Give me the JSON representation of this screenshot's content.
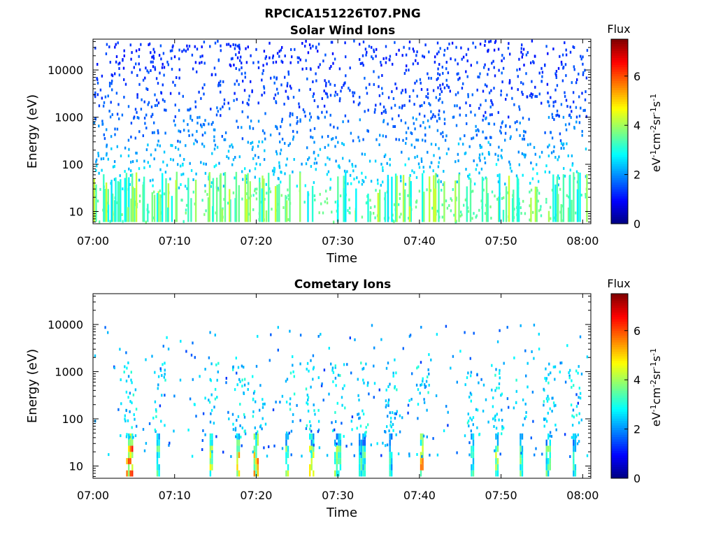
{
  "figure": {
    "title_line1": "RPCICA151226T07.PNG"
  },
  "colormap": {
    "name": "jet",
    "stops": [
      "#00007f",
      "#0000ff",
      "#007fff",
      "#00ffff",
      "#7fff7f",
      "#ffff00",
      "#ff7f00",
      "#ff0000",
      "#7f0000"
    ]
  },
  "chart_data": [
    {
      "type": "heatmap",
      "title": "Solar Wind Ions",
      "xlabel": "Time",
      "ylabel": "Energy (eV)",
      "x_ticks": [
        "07:00",
        "07:10",
        "07:20",
        "07:30",
        "07:40",
        "07:50",
        "08:00"
      ],
      "xlim_minutes": [
        0,
        61
      ],
      "y_scale": "log",
      "ylim": [
        5.5,
        45000
      ],
      "y_ticks": [
        "10",
        "100",
        "1000",
        "10000"
      ],
      "grid": false,
      "colorbar": {
        "title": "Flux",
        "label": "eV-1cm-2sr-1s-1",
        "range": [
          0,
          7.5
        ],
        "ticks": [
          "0",
          "2",
          "4",
          "6"
        ]
      },
      "density_note_values": {
        "energy_bands_eV": [
          10,
          30,
          100,
          300,
          1000,
          3000,
          10000,
          30000
        ],
        "typical_flux_by_band": [
          3.5,
          2.5,
          2.2,
          1.8,
          1.5,
          1.4,
          1.3,
          1.3
        ]
      }
    },
    {
      "type": "heatmap",
      "title": "Cometary Ions",
      "xlabel": "Time",
      "ylabel": "Energy (eV)",
      "x_ticks": [
        "07:00",
        "07:10",
        "07:20",
        "07:30",
        "07:40",
        "07:50",
        "08:00"
      ],
      "xlim_minutes": [
        0,
        61
      ],
      "y_scale": "log",
      "ylim": [
        5.5,
        45000
      ],
      "y_ticks": [
        "10",
        "100",
        "1000",
        "10000"
      ],
      "grid": false,
      "colorbar": {
        "title": "Flux",
        "label": "eV-1cm-2sr-1s-1",
        "range": [
          0,
          7.5
        ],
        "ticks": [
          "0",
          "2",
          "4",
          "6"
        ]
      },
      "burst_times_minutes": [
        4.5,
        8.0,
        14.5,
        17.8,
        20.0,
        23.8,
        26.8,
        30.0,
        33.0,
        36.5,
        40.3,
        46.5,
        49.5,
        52.5,
        55.8,
        59.0
      ],
      "burst_peak_flux": [
        6.5,
        4.0,
        5.0,
        5.5,
        6.0,
        4.5,
        5.0,
        4.5,
        3.8,
        3.5,
        6.0,
        4.0,
        4.5,
        4.0,
        4.0,
        3.8
      ]
    }
  ]
}
